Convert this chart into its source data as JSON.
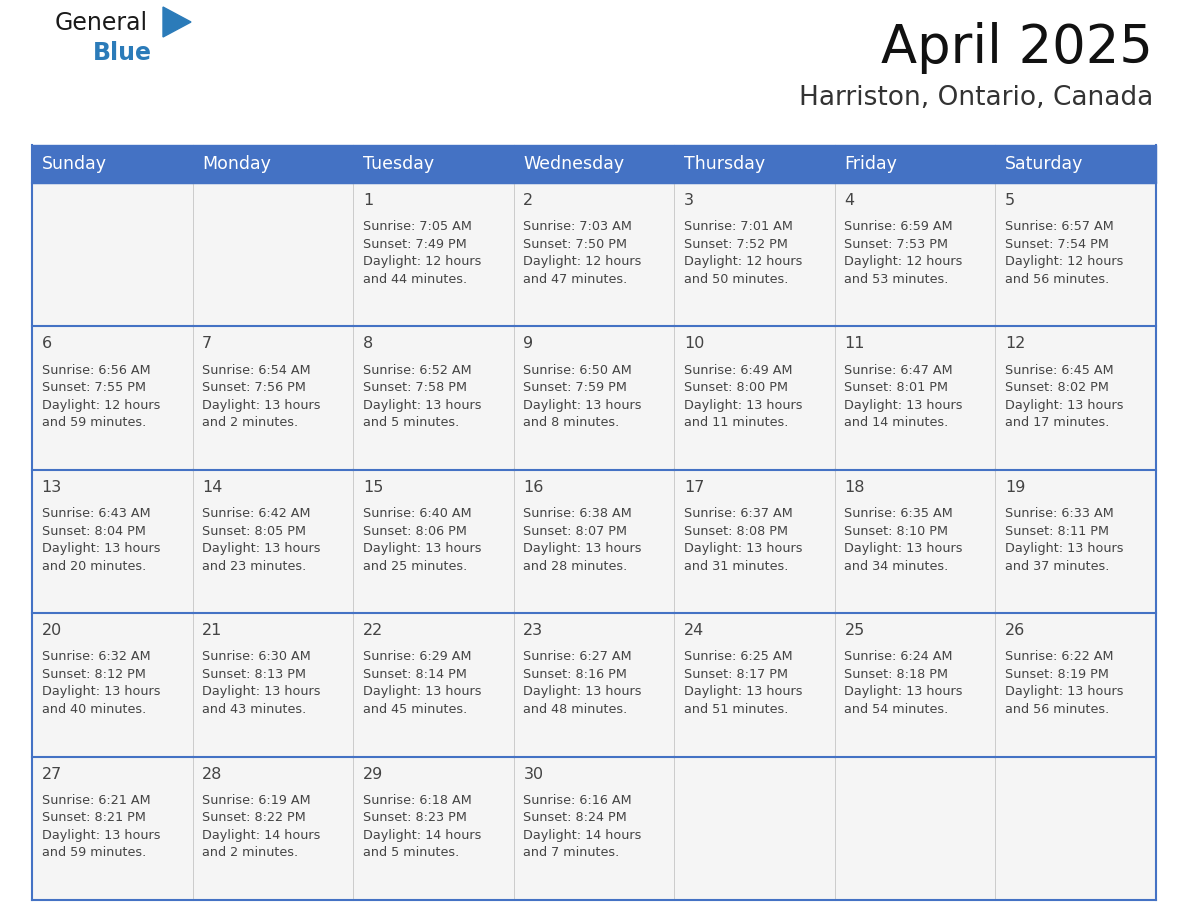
{
  "title": "April 2025",
  "subtitle": "Harriston, Ontario, Canada",
  "header_color": "#4472C4",
  "header_text_color": "#FFFFFF",
  "cell_bg_color": "#F5F5F5",
  "border_color": "#4472C4",
  "text_color": "#444444",
  "days_of_week": [
    "Sunday",
    "Monday",
    "Tuesday",
    "Wednesday",
    "Thursday",
    "Friday",
    "Saturday"
  ],
  "weeks": [
    [
      {
        "day": "",
        "info": ""
      },
      {
        "day": "",
        "info": ""
      },
      {
        "day": "1",
        "info": "Sunrise: 7:05 AM\nSunset: 7:49 PM\nDaylight: 12 hours\nand 44 minutes."
      },
      {
        "day": "2",
        "info": "Sunrise: 7:03 AM\nSunset: 7:50 PM\nDaylight: 12 hours\nand 47 minutes."
      },
      {
        "day": "3",
        "info": "Sunrise: 7:01 AM\nSunset: 7:52 PM\nDaylight: 12 hours\nand 50 minutes."
      },
      {
        "day": "4",
        "info": "Sunrise: 6:59 AM\nSunset: 7:53 PM\nDaylight: 12 hours\nand 53 minutes."
      },
      {
        "day": "5",
        "info": "Sunrise: 6:57 AM\nSunset: 7:54 PM\nDaylight: 12 hours\nand 56 minutes."
      }
    ],
    [
      {
        "day": "6",
        "info": "Sunrise: 6:56 AM\nSunset: 7:55 PM\nDaylight: 12 hours\nand 59 minutes."
      },
      {
        "day": "7",
        "info": "Sunrise: 6:54 AM\nSunset: 7:56 PM\nDaylight: 13 hours\nand 2 minutes."
      },
      {
        "day": "8",
        "info": "Sunrise: 6:52 AM\nSunset: 7:58 PM\nDaylight: 13 hours\nand 5 minutes."
      },
      {
        "day": "9",
        "info": "Sunrise: 6:50 AM\nSunset: 7:59 PM\nDaylight: 13 hours\nand 8 minutes."
      },
      {
        "day": "10",
        "info": "Sunrise: 6:49 AM\nSunset: 8:00 PM\nDaylight: 13 hours\nand 11 minutes."
      },
      {
        "day": "11",
        "info": "Sunrise: 6:47 AM\nSunset: 8:01 PM\nDaylight: 13 hours\nand 14 minutes."
      },
      {
        "day": "12",
        "info": "Sunrise: 6:45 AM\nSunset: 8:02 PM\nDaylight: 13 hours\nand 17 minutes."
      }
    ],
    [
      {
        "day": "13",
        "info": "Sunrise: 6:43 AM\nSunset: 8:04 PM\nDaylight: 13 hours\nand 20 minutes."
      },
      {
        "day": "14",
        "info": "Sunrise: 6:42 AM\nSunset: 8:05 PM\nDaylight: 13 hours\nand 23 minutes."
      },
      {
        "day": "15",
        "info": "Sunrise: 6:40 AM\nSunset: 8:06 PM\nDaylight: 13 hours\nand 25 minutes."
      },
      {
        "day": "16",
        "info": "Sunrise: 6:38 AM\nSunset: 8:07 PM\nDaylight: 13 hours\nand 28 minutes."
      },
      {
        "day": "17",
        "info": "Sunrise: 6:37 AM\nSunset: 8:08 PM\nDaylight: 13 hours\nand 31 minutes."
      },
      {
        "day": "18",
        "info": "Sunrise: 6:35 AM\nSunset: 8:10 PM\nDaylight: 13 hours\nand 34 minutes."
      },
      {
        "day": "19",
        "info": "Sunrise: 6:33 AM\nSunset: 8:11 PM\nDaylight: 13 hours\nand 37 minutes."
      }
    ],
    [
      {
        "day": "20",
        "info": "Sunrise: 6:32 AM\nSunset: 8:12 PM\nDaylight: 13 hours\nand 40 minutes."
      },
      {
        "day": "21",
        "info": "Sunrise: 6:30 AM\nSunset: 8:13 PM\nDaylight: 13 hours\nand 43 minutes."
      },
      {
        "day": "22",
        "info": "Sunrise: 6:29 AM\nSunset: 8:14 PM\nDaylight: 13 hours\nand 45 minutes."
      },
      {
        "day": "23",
        "info": "Sunrise: 6:27 AM\nSunset: 8:16 PM\nDaylight: 13 hours\nand 48 minutes."
      },
      {
        "day": "24",
        "info": "Sunrise: 6:25 AM\nSunset: 8:17 PM\nDaylight: 13 hours\nand 51 minutes."
      },
      {
        "day": "25",
        "info": "Sunrise: 6:24 AM\nSunset: 8:18 PM\nDaylight: 13 hours\nand 54 minutes."
      },
      {
        "day": "26",
        "info": "Sunrise: 6:22 AM\nSunset: 8:19 PM\nDaylight: 13 hours\nand 56 minutes."
      }
    ],
    [
      {
        "day": "27",
        "info": "Sunrise: 6:21 AM\nSunset: 8:21 PM\nDaylight: 13 hours\nand 59 minutes."
      },
      {
        "day": "28",
        "info": "Sunrise: 6:19 AM\nSunset: 8:22 PM\nDaylight: 14 hours\nand 2 minutes."
      },
      {
        "day": "29",
        "info": "Sunrise: 6:18 AM\nSunset: 8:23 PM\nDaylight: 14 hours\nand 5 minutes."
      },
      {
        "day": "30",
        "info": "Sunrise: 6:16 AM\nSunset: 8:24 PM\nDaylight: 14 hours\nand 7 minutes."
      },
      {
        "day": "",
        "info": ""
      },
      {
        "day": "",
        "info": ""
      },
      {
        "day": "",
        "info": ""
      }
    ]
  ],
  "logo_general_color": "#1a1a1a",
  "logo_blue_color": "#2B7BB9",
  "logo_triangle_color": "#2B7BB9",
  "title_fontsize": 38,
  "subtitle_fontsize": 19,
  "header_fontsize": 12.5,
  "day_num_fontsize": 11.5,
  "info_fontsize": 9.2,
  "fig_width": 11.88,
  "fig_height": 9.18,
  "fig_dpi": 100
}
